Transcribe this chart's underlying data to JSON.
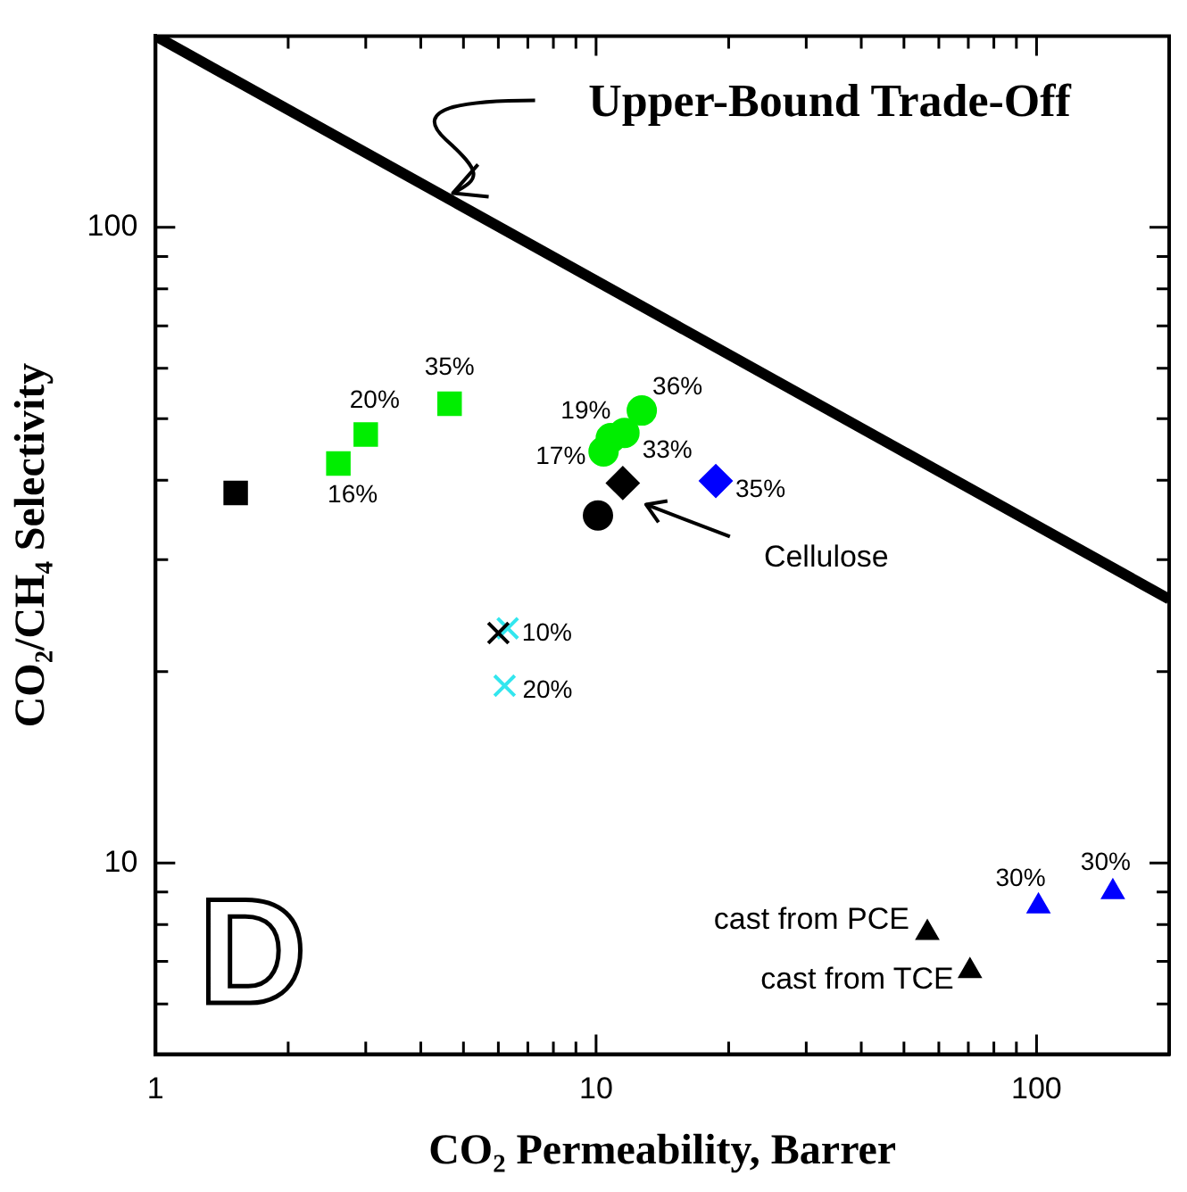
{
  "chart_data": {
    "type": "scatter",
    "xlabel": "CO₂ Permeability, Barrer",
    "ylabel": "CO₂/CH₄ Selectivity",
    "log": "xy",
    "xlim": [
      1,
      200
    ],
    "ylim": [
      5,
      200
    ],
    "xticks": [
      1,
      {
        "value": 2,
        "label": null
      },
      {
        "value": 3,
        "label": null
      },
      {
        "value": 4,
        "label": null
      },
      {
        "value": 5,
        "label": null
      },
      {
        "value": 6,
        "label": null
      },
      {
        "value": 7,
        "label": null
      },
      {
        "value": 8,
        "label": null
      },
      {
        "value": 9,
        "label": null
      },
      10,
      {
        "value": 20,
        "label": null
      },
      {
        "value": 30,
        "label": null
      },
      {
        "value": 40,
        "label": null
      },
      {
        "value": 50,
        "label": null
      },
      {
        "value": 60,
        "label": null
      },
      {
        "value": 70,
        "label": null
      },
      {
        "value": 80,
        "label": null
      },
      {
        "value": 90,
        "label": null
      },
      100
    ],
    "yticks": [
      {
        "value": 6,
        "label": null
      },
      {
        "value": 7,
        "label": null
      },
      {
        "value": 8,
        "label": null
      },
      {
        "value": 9,
        "label": null
      },
      10,
      {
        "value": 20,
        "label": null
      },
      {
        "value": 30,
        "label": null
      },
      {
        "value": 40,
        "label": null
      },
      {
        "value": 50,
        "label": null
      },
      {
        "value": 60,
        "label": null
      },
      {
        "value": 70,
        "label": null
      },
      {
        "value": 80,
        "label": null
      },
      {
        "value": 90,
        "label": null
      },
      100
    ],
    "annotations": [
      "D",
      {
        "text": "16%",
        "x": 2.6,
        "y": 42.5
      },
      {
        "text": "20%",
        "x": 3.0,
        "y": 47.2
      },
      {
        "text": "35%",
        "x": 4.65,
        "y": 52.8
      },
      {
        "text": "17%",
        "x": 10.4,
        "y": 44.4
      },
      {
        "text": "19%",
        "x": 10.8,
        "y": 46.6
      },
      {
        "text": "33%",
        "x": 11.6,
        "y": 47.5
      },
      {
        "text": "36%",
        "x": 12.7,
        "y": 51.5
      },
      {
        "text": "35%",
        "x": 18.7,
        "y": 39.9
      },
      {
        "text": "10%",
        "x": 6.3,
        "y": 23.4
      },
      {
        "text": "20%",
        "x": 6.2,
        "y": 19.0
      },
      {
        "text": "30%",
        "x": 101,
        "y": 8.55
      },
      {
        "text": "30%",
        "x": 149,
        "y": 9.0
      }
    ],
    "series": [
      {
        "type": "line",
        "name": "Upper-Bound Trade-Off",
        "color": "#000000",
        "marker": "none",
        "x": [
          1,
          200
        ],
        "values": [
          200,
          26
        ]
      },
      {
        "color": "#000000",
        "marker": "square",
        "x": [
          1.52
        ],
        "values": [
          38.2
        ]
      },
      {
        "color": "#00ee00",
        "marker": "square",
        "x": [
          2.6,
          3.0,
          4.65
        ],
        "values": [
          42.5,
          47.2,
          52.8
        ]
      },
      {
        "color": "#00ee00",
        "marker": "circle",
        "x": [
          10.4,
          10.8,
          11.6,
          12.7
        ],
        "values": [
          44.4,
          46.6,
          47.5,
          51.5
        ]
      },
      {
        "color": "#000000",
        "marker": "circle",
        "x": [
          10.1
        ],
        "values": [
          35.2
        ]
      },
      {
        "name": "Cellulose",
        "color": "#000000",
        "marker": "diamond",
        "x": [
          11.5
        ],
        "values": [
          39.6
        ]
      },
      {
        "color": "#0000ff",
        "marker": "diamond",
        "x": [
          18.7
        ],
        "values": [
          39.9
        ]
      },
      {
        "color": "#000000",
        "marker": "cross",
        "x": [
          6.0
        ],
        "values": [
          23.0
        ]
      },
      {
        "color": "#33e6ee",
        "marker": "cross",
        "x": [
          6.3,
          6.2
        ],
        "values": [
          23.4,
          19.0
        ]
      },
      {
        "name": "cast from PCE",
        "color": "#000000",
        "marker": "triangle",
        "x": [
          56.5
        ],
        "values": [
          7.76
        ]
      },
      {
        "name": "cast from TCE",
        "color": "#000000",
        "marker": "triangle",
        "x": [
          70.6
        ],
        "values": [
          6.76
        ]
      },
      {
        "color": "#0000ff",
        "marker": "triangle",
        "x": [
          101
        ],
        "values": [
          8.55
        ]
      },
      {
        "color": "#0000ff",
        "marker": "triangle",
        "x": [
          149
        ],
        "values": [
          9.0
        ]
      }
    ]
  }
}
